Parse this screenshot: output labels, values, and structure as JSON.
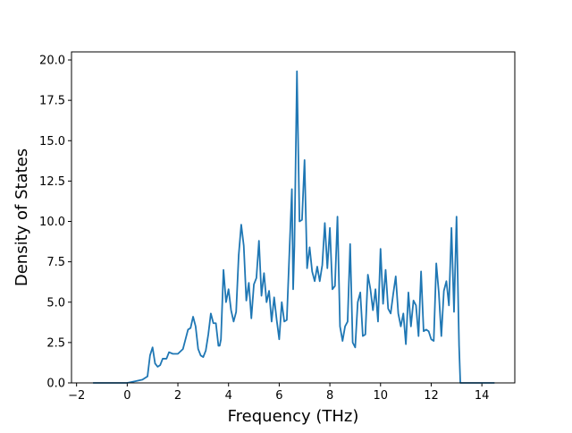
{
  "chart_data": {
    "type": "line",
    "title": "",
    "xlabel": "Frequency (THz)",
    "ylabel": "Density of States",
    "xlim": [
      -2.2,
      15.3
    ],
    "ylim": [
      0,
      20.5
    ],
    "x_ticks": [
      -2,
      0,
      2,
      4,
      6,
      8,
      10,
      12,
      14
    ],
    "x_tick_labels": [
      "−2",
      "0",
      "2",
      "4",
      "6",
      "8",
      "10",
      "12",
      "14"
    ],
    "y_ticks": [
      0,
      2.5,
      5,
      7.5,
      10,
      12.5,
      15,
      17.5,
      20
    ],
    "y_tick_labels": [
      "0.0",
      "2.5",
      "5.0",
      "7.5",
      "10.0",
      "12.5",
      "15.0",
      "17.5",
      "20.0"
    ],
    "grid": false,
    "legend": "none",
    "series": [
      {
        "color": "#1f77b4",
        "x": [
          -1.35,
          0.0,
          0.3,
          0.6,
          0.8,
          0.9,
          1.0,
          1.1,
          1.2,
          1.3,
          1.4,
          1.55,
          1.65,
          1.8,
          2.0,
          2.2,
          2.4,
          2.5,
          2.6,
          2.7,
          2.8,
          2.9,
          3.0,
          3.1,
          3.2,
          3.3,
          3.4,
          3.5,
          3.6,
          3.65,
          3.7,
          3.8,
          3.9,
          4.0,
          4.1,
          4.2,
          4.3,
          4.4,
          4.5,
          4.6,
          4.7,
          4.8,
          4.9,
          5.0,
          5.1,
          5.2,
          5.3,
          5.4,
          5.5,
          5.6,
          5.7,
          5.8,
          5.9,
          6.0,
          6.1,
          6.2,
          6.3,
          6.4,
          6.5,
          6.55,
          6.6,
          6.7,
          6.8,
          6.9,
          7.0,
          7.1,
          7.2,
          7.3,
          7.4,
          7.5,
          7.6,
          7.7,
          7.8,
          7.9,
          8.0,
          8.1,
          8.2,
          8.3,
          8.4,
          8.5,
          8.6,
          8.7,
          8.8,
          8.9,
          9.0,
          9.1,
          9.2,
          9.3,
          9.4,
          9.5,
          9.6,
          9.7,
          9.8,
          9.9,
          10.0,
          10.1,
          10.2,
          10.3,
          10.4,
          10.5,
          10.6,
          10.7,
          10.8,
          10.9,
          11.0,
          11.1,
          11.2,
          11.3,
          11.4,
          11.5,
          11.6,
          11.7,
          11.8,
          11.9,
          12.0,
          12.1,
          12.2,
          12.3,
          12.4,
          12.5,
          12.6,
          12.7,
          12.8,
          12.9,
          13.0,
          13.1,
          13.15,
          13.25,
          13.5,
          14.5
        ],
        "y": [
          0.0,
          0.0,
          0.1,
          0.2,
          0.4,
          1.7,
          2.2,
          1.2,
          1.0,
          1.1,
          1.5,
          1.5,
          1.9,
          1.8,
          1.8,
          2.1,
          3.3,
          3.4,
          4.1,
          3.5,
          2.1,
          1.7,
          1.6,
          2.0,
          3.0,
          4.3,
          3.7,
          3.7,
          2.3,
          2.3,
          2.7,
          7.0,
          5.0,
          5.8,
          4.5,
          3.8,
          4.4,
          7.9,
          9.8,
          8.5,
          5.1,
          6.2,
          4.0,
          6.1,
          6.5,
          8.8,
          5.4,
          6.8,
          5.0,
          5.7,
          3.8,
          5.3,
          3.9,
          2.7,
          5.0,
          3.8,
          3.9,
          8.0,
          12.0,
          5.8,
          8.5,
          19.3,
          10.0,
          10.1,
          13.8,
          7.1,
          8.4,
          6.9,
          6.3,
          7.2,
          6.3,
          7.3,
          9.9,
          7.1,
          9.6,
          5.8,
          6.0,
          10.3,
          3.5,
          2.6,
          3.5,
          3.8,
          8.6,
          2.5,
          2.2,
          5.0,
          5.6,
          2.9,
          3.0,
          6.7,
          5.8,
          4.5,
          5.8,
          3.8,
          8.3,
          4.9,
          7.0,
          4.6,
          4.3,
          5.5,
          6.6,
          4.3,
          3.5,
          4.3,
          2.4,
          5.6,
          3.5,
          5.1,
          4.8,
          2.9,
          6.9,
          3.2,
          3.3,
          3.2,
          2.7,
          2.6,
          7.4,
          5.6,
          2.9,
          5.7,
          6.3,
          4.8,
          9.6,
          4.4,
          10.3,
          2.3,
          0.0,
          0.0,
          0.0,
          0.0
        ]
      }
    ]
  }
}
